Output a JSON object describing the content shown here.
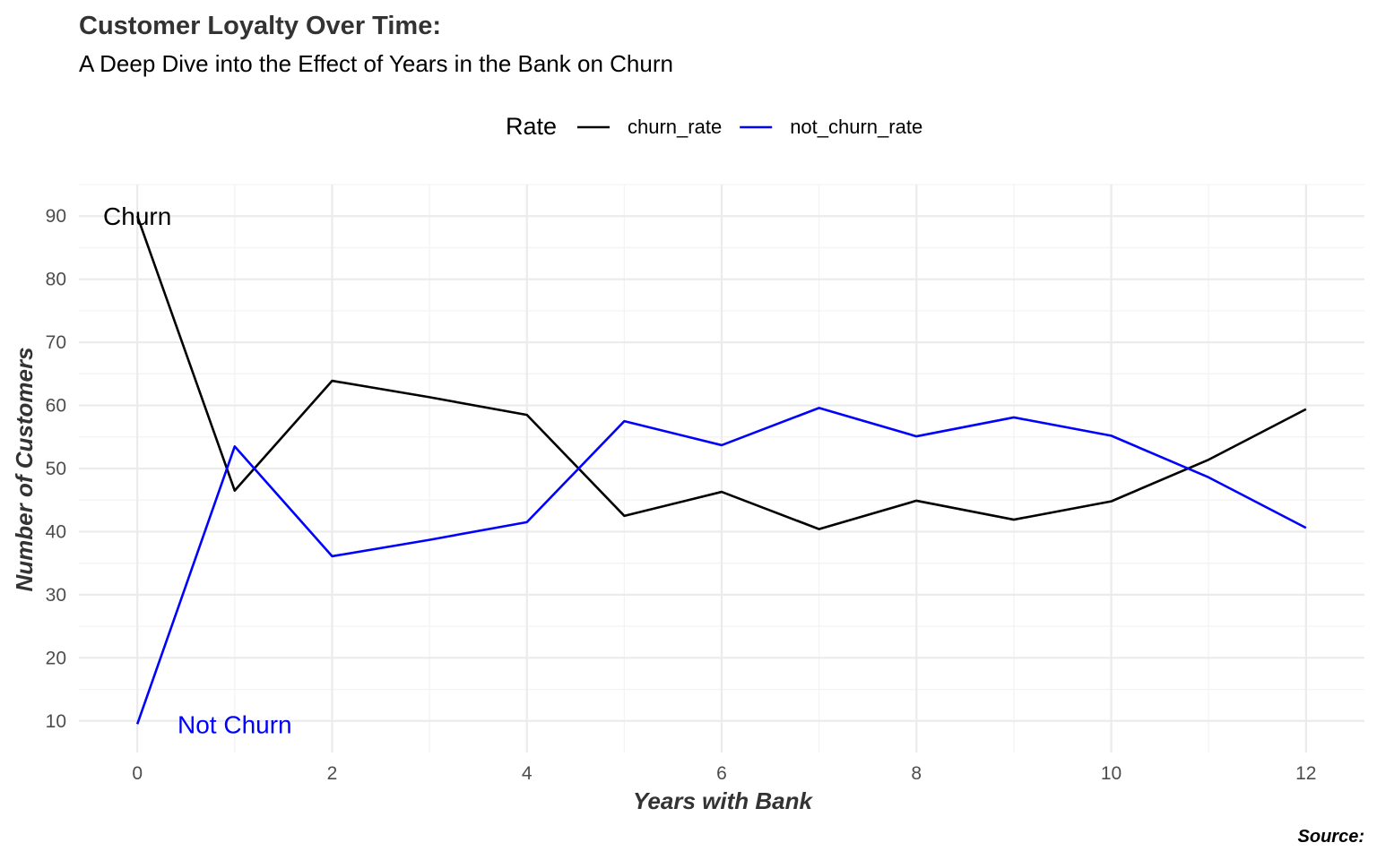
{
  "chart_data": {
    "type": "line",
    "title": "Customer Loyalty Over Time:",
    "subtitle": "A Deep Dive into the Effect of Years in the Bank on Churn",
    "xlabel": "Years with Bank",
    "ylabel": "Number of Customers",
    "caption": "Source:",
    "legend": {
      "title": "Rate",
      "position": "top"
    },
    "grid": true,
    "xlim": [
      -0.6,
      12.6
    ],
    "ylim": [
      5,
      95
    ],
    "x_ticks": [
      0,
      2,
      4,
      6,
      8,
      10,
      12
    ],
    "y_ticks": [
      10,
      20,
      30,
      40,
      50,
      60,
      70,
      80,
      90
    ],
    "x": [
      0,
      1,
      2,
      3,
      4,
      5,
      6,
      7,
      8,
      9,
      10,
      11,
      12
    ],
    "series": [
      {
        "name": "churn_rate",
        "color": "#000000",
        "values": [
          90.0,
          46.5,
          63.9,
          61.3,
          58.5,
          42.5,
          46.3,
          40.4,
          44.9,
          41.9,
          44.8,
          51.4,
          59.4
        ]
      },
      {
        "name": "not_churn_rate",
        "color": "#0000ff",
        "values": [
          9.5,
          53.5,
          36.1,
          38.7,
          41.5,
          57.5,
          53.7,
          59.6,
          55.1,
          58.1,
          55.2,
          48.6,
          40.6
        ]
      }
    ],
    "annotations": [
      {
        "text": "Churn",
        "x": 0,
        "y": 90,
        "color": "#000000"
      },
      {
        "text": "Not Churn",
        "x": 1,
        "y": 9.5,
        "color": "#0000ff"
      }
    ]
  }
}
